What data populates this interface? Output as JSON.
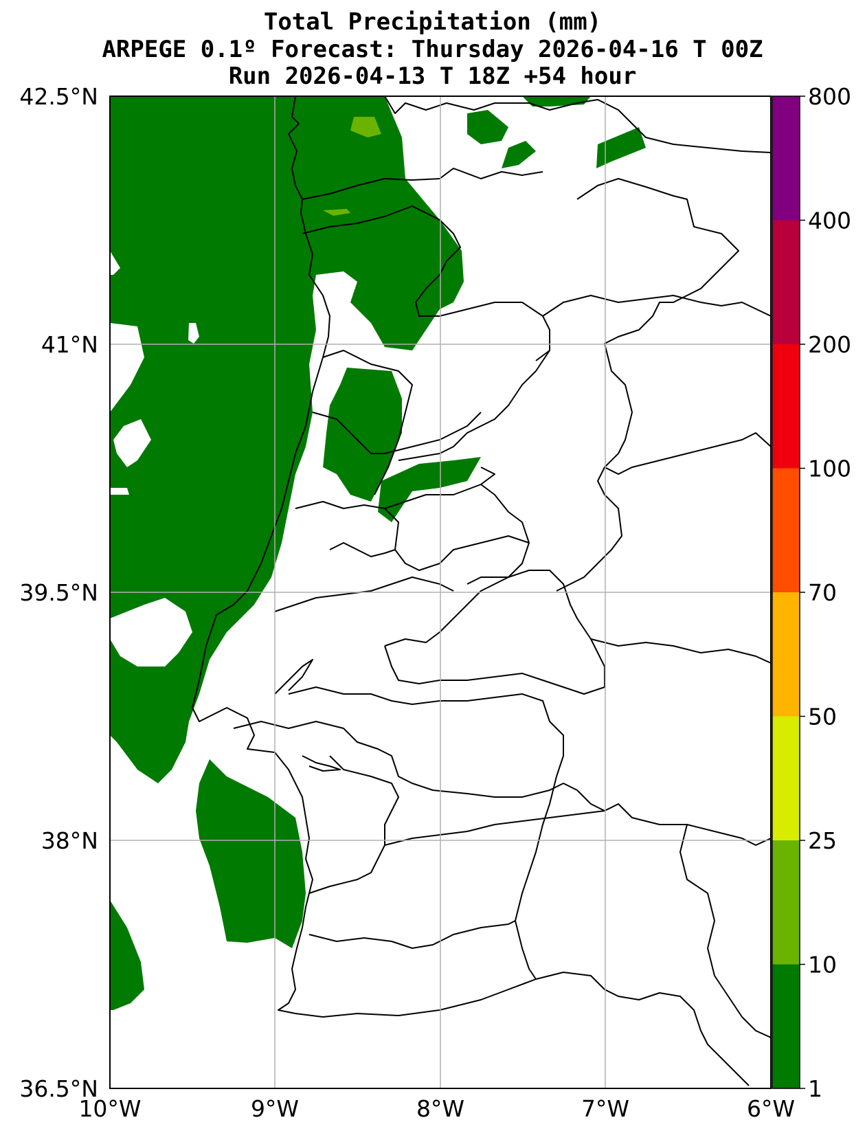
{
  "title": {
    "line1": "Total Precipitation (mm)",
    "line2": "ARPEGE 0.1º Forecast: Thursday 2026-04-16 T 00Z",
    "line3": "Run 2026-04-13 T 18Z +54 hour"
  },
  "map": {
    "lon_range": [
      -10,
      -6
    ],
    "lat_range": [
      36.5,
      42.5
    ],
    "lon_ticks": [
      "10°W",
      "9°W",
      "8°W",
      "7°W",
      "6°W"
    ],
    "lat_ticks": [
      "42.5°N",
      "41°N",
      "39.5°N",
      "38°N",
      "36.5°N"
    ],
    "gridlines": true,
    "region": "Portugal with country and district borders"
  },
  "colorbar": {
    "levels": [
      "1",
      "10",
      "25",
      "50",
      "70",
      "100",
      "200",
      "400",
      "800"
    ],
    "colors": [
      "#007a00",
      "#6ab400",
      "#d8ec00",
      "#ffb400",
      "#ff4e00",
      "#f0000f",
      "#b8003c",
      "#800080"
    ]
  },
  "precip_color": "#007a00",
  "precip_light_color": "#6ab400"
}
